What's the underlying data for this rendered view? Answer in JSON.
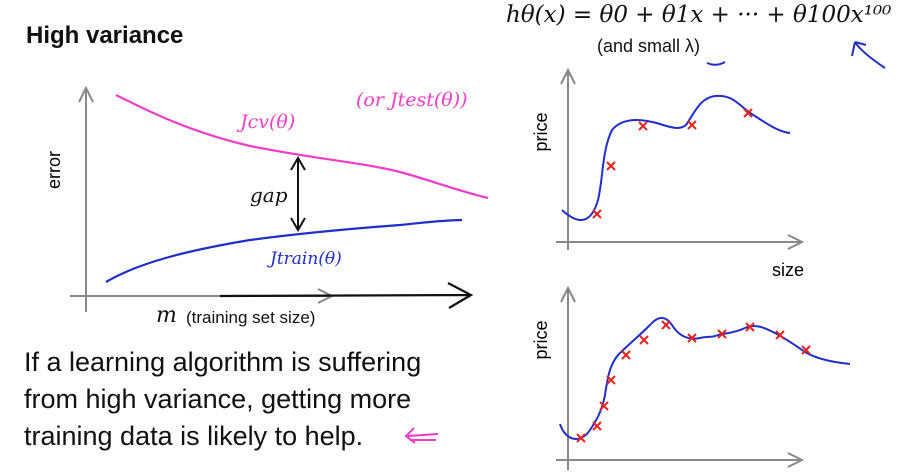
{
  "header": {
    "title": "High variance",
    "formula": "hθ(x) = θ0 + θ1x + ··· + θ100x¹⁰⁰",
    "lambda_note": "(and small λ)"
  },
  "learning_curve": {
    "y_axis_label": "error",
    "x_axis_symbol": "m",
    "x_axis_label": "(training set size)",
    "cv_label": "Jcv(θ)",
    "test_label": "(or Jtest(θ))",
    "train_label": "Jtrain(θ)",
    "gap_label": "gap",
    "colors": {
      "cv": "#f03cc8",
      "train": "#1f2fc8"
    }
  },
  "fit_plots": {
    "top": {
      "y_axis_label": "price",
      "x_axis_label": "size"
    },
    "bottom": {
      "y_axis_label": "price"
    },
    "curve_color": "#1f2fc8",
    "marker_color": "#e8231e"
  },
  "explanation": {
    "line1": "If a learning algorithm is suffering",
    "line2": "from high variance, getting more",
    "line3": "training data is likely to help."
  }
}
